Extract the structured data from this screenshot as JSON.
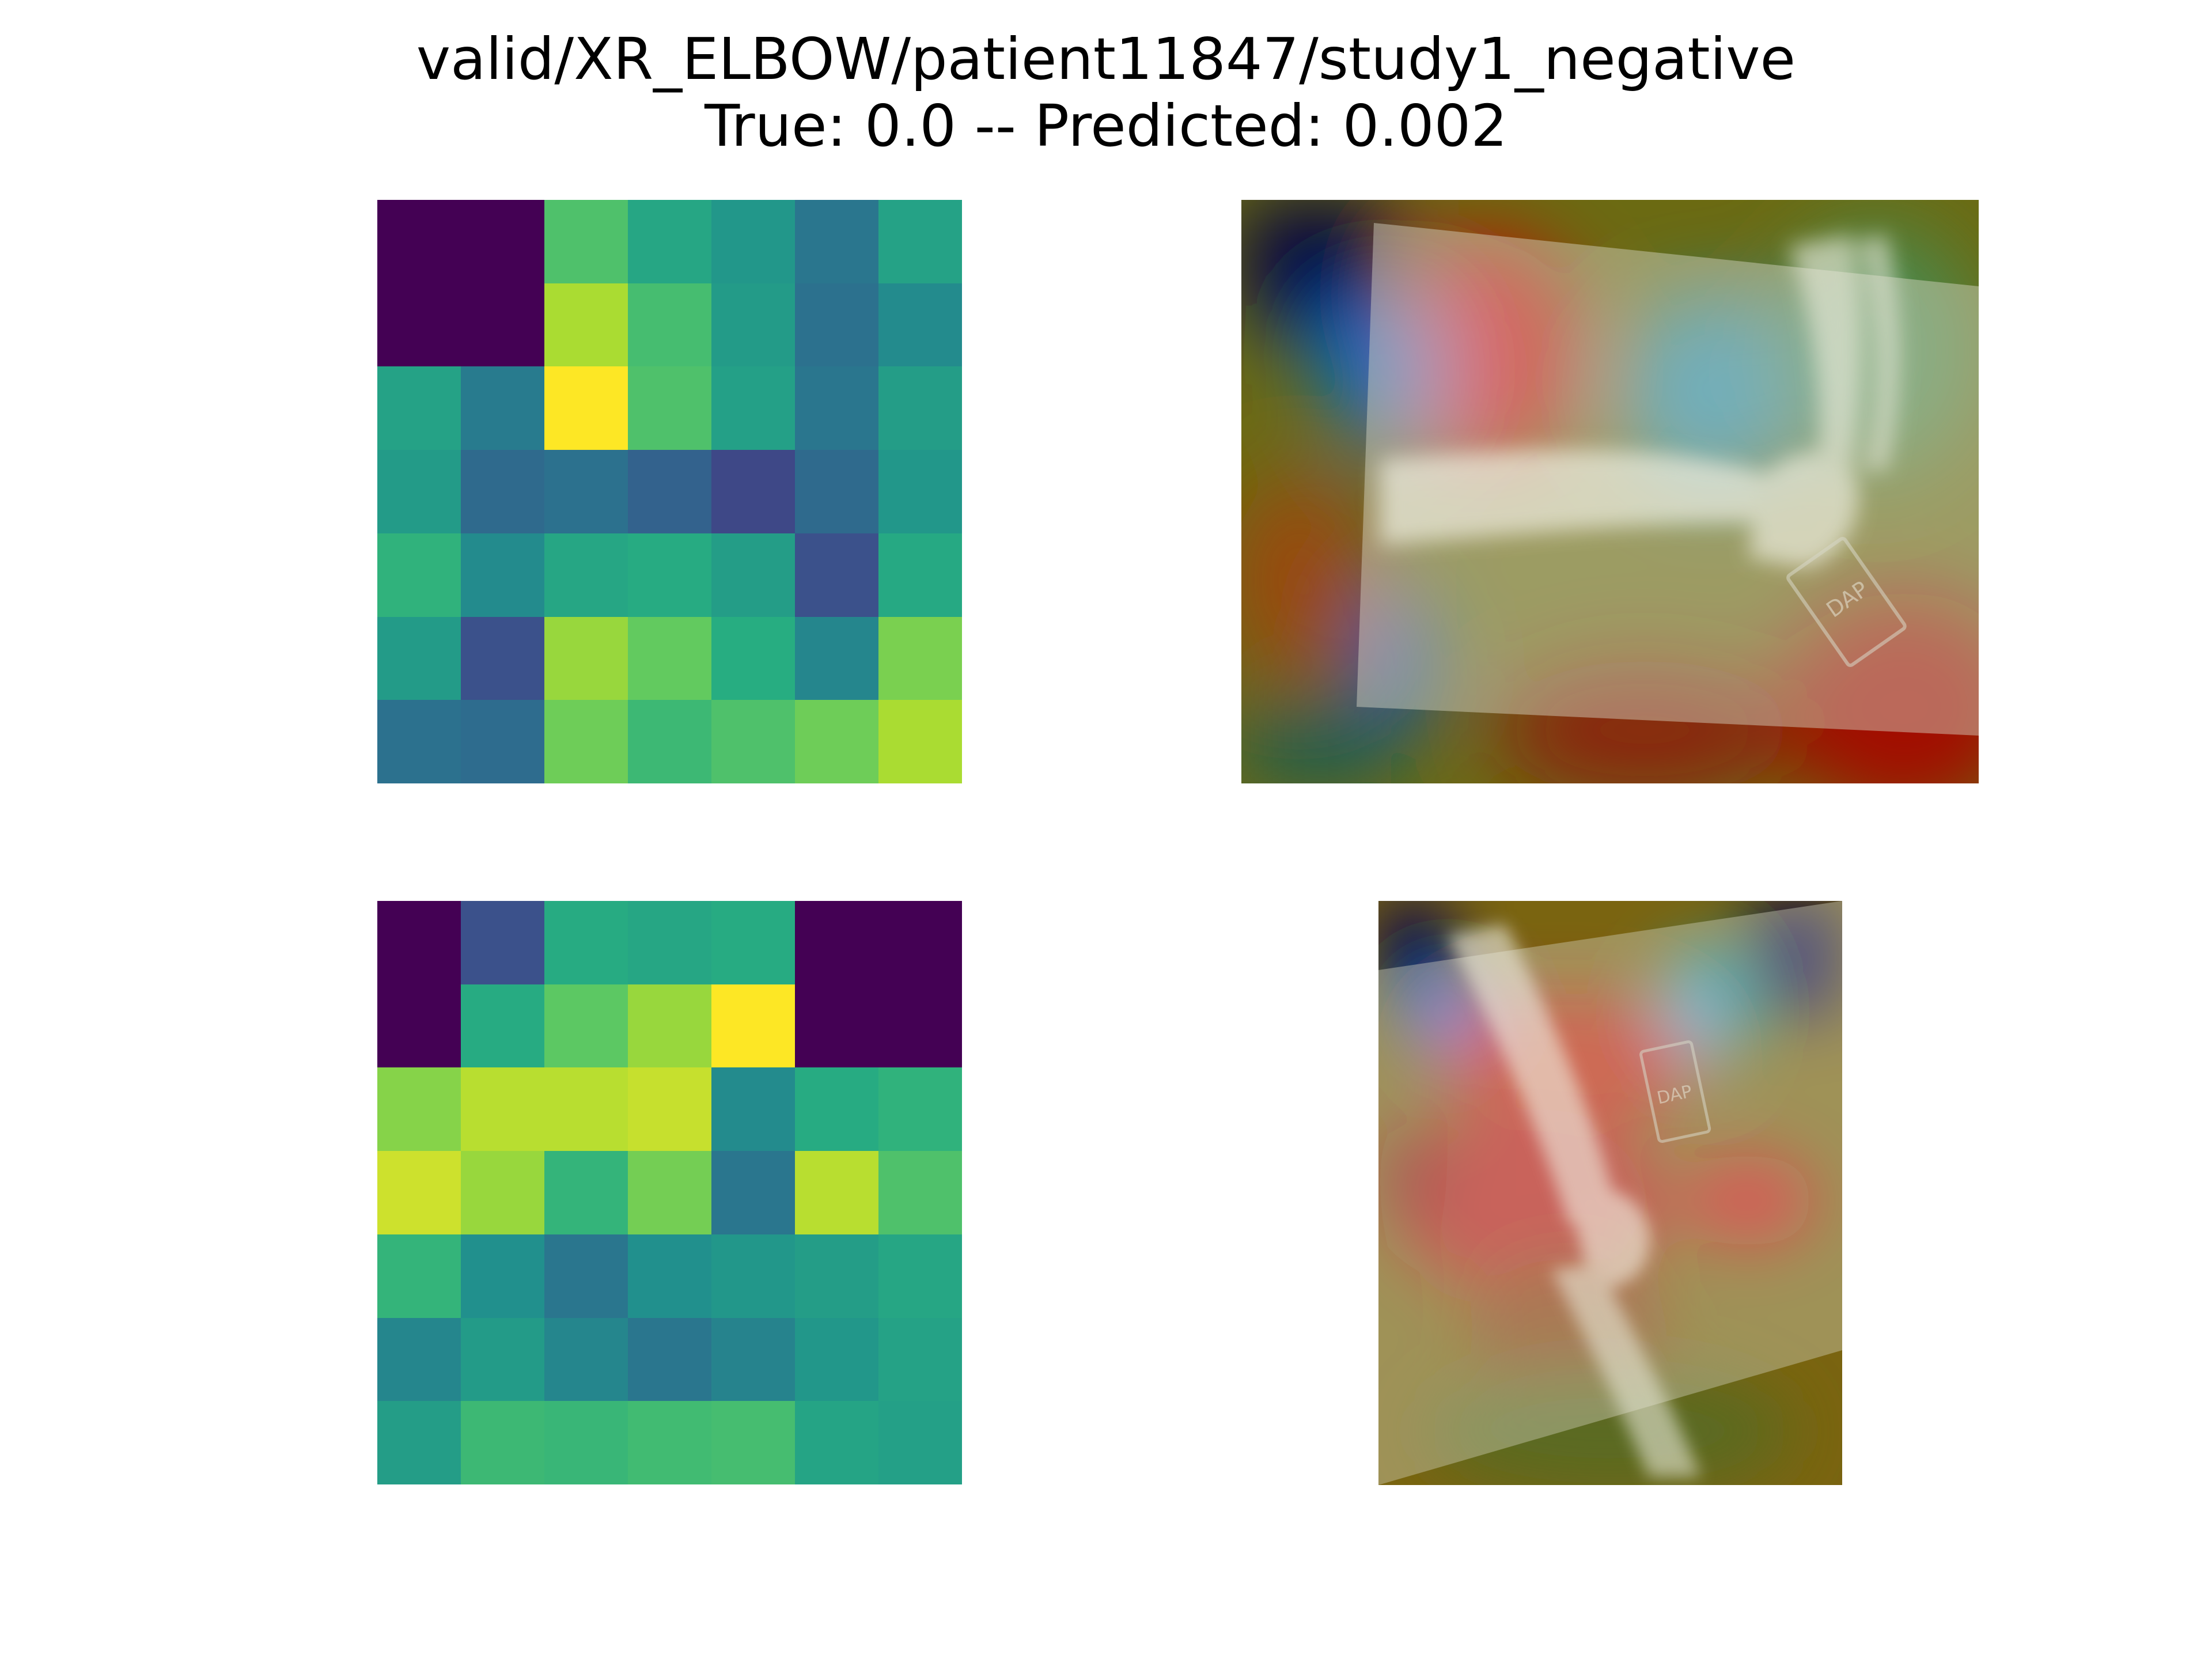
{
  "title": {
    "line1": "valid/XR_ELBOW/patient11847/study1_negative",
    "line2": "True: 0.0 -- Predicted: 0.002"
  },
  "chart_data": [
    {
      "type": "heatmap",
      "panel": "top-left",
      "colormap": "viridis",
      "vmin": 0,
      "vmax": 1,
      "values": [
        [
          0.0,
          0.0,
          0.72,
          0.6,
          0.53,
          0.4,
          0.58
        ],
        [
          0.0,
          0.0,
          0.88,
          0.7,
          0.55,
          0.38,
          0.48
        ],
        [
          0.58,
          0.42,
          1.0,
          0.72,
          0.57,
          0.4,
          0.56
        ],
        [
          0.55,
          0.35,
          0.38,
          0.32,
          0.22,
          0.35,
          0.53
        ],
        [
          0.65,
          0.48,
          0.6,
          0.62,
          0.56,
          0.25,
          0.61
        ],
        [
          0.55,
          0.25,
          0.85,
          0.76,
          0.63,
          0.46,
          0.8
        ],
        [
          0.38,
          0.36,
          0.78,
          0.68,
          0.72,
          0.78,
          0.88
        ]
      ]
    },
    {
      "type": "heatmap",
      "panel": "bottom-left",
      "colormap": "viridis",
      "vmin": 0,
      "vmax": 1,
      "values": [
        [
          0.0,
          0.25,
          0.62,
          0.6,
          0.62,
          0.0,
          0.0
        ],
        [
          0.0,
          0.62,
          0.75,
          0.85,
          1.0,
          0.0,
          0.0
        ],
        [
          0.82,
          0.9,
          0.9,
          0.92,
          0.48,
          0.62,
          0.65
        ],
        [
          0.93,
          0.85,
          0.66,
          0.79,
          0.4,
          0.9,
          0.72
        ],
        [
          0.66,
          0.5,
          0.4,
          0.5,
          0.53,
          0.56,
          0.6
        ],
        [
          0.46,
          0.55,
          0.46,
          0.4,
          0.45,
          0.53,
          0.58
        ],
        [
          0.56,
          0.68,
          0.67,
          0.69,
          0.7,
          0.59,
          0.57
        ]
      ]
    }
  ],
  "images": {
    "top_right": {
      "name": "xray-cam-overlay-1",
      "body_part": "elbow",
      "marker_text": "DAP"
    },
    "bottom_right": {
      "name": "xray-cam-overlay-2",
      "body_part": "elbow",
      "marker_text": "DAP"
    }
  },
  "colors": {
    "background": "#ffffff",
    "text": "#000000"
  }
}
